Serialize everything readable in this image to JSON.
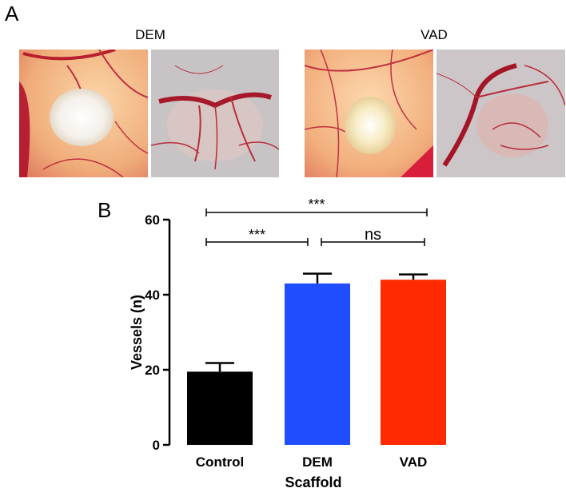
{
  "figure": {
    "panel_a_letter": "A",
    "panel_b_letter": "B",
    "groups": [
      {
        "title": "DEM"
      },
      {
        "title": "VAD"
      }
    ]
  },
  "colors": {
    "control": "#000000",
    "dem": "#1f4dff",
    "vad": "#ff2a00",
    "vessel": "#b81e2e",
    "egg_warm": "#f3b98a",
    "membrane": "#c9c2c4"
  },
  "chart_data": {
    "type": "bar",
    "categories": [
      "Control",
      "DEM",
      "VAD"
    ],
    "values": [
      19.5,
      43,
      44
    ],
    "errors": [
      2.3,
      2.6,
      1.4
    ],
    "xlabel": "Scaffold",
    "ylabel": "Vessels (n)",
    "ylim": [
      0,
      60
    ],
    "yticks": [
      0,
      20,
      40,
      60
    ],
    "grid": false,
    "significance": [
      {
        "from": "Control",
        "to": "VAD",
        "label": "***"
      },
      {
        "from": "Control",
        "to": "DEM",
        "label": "***"
      },
      {
        "from": "DEM",
        "to": "VAD",
        "label": "ns"
      }
    ]
  }
}
